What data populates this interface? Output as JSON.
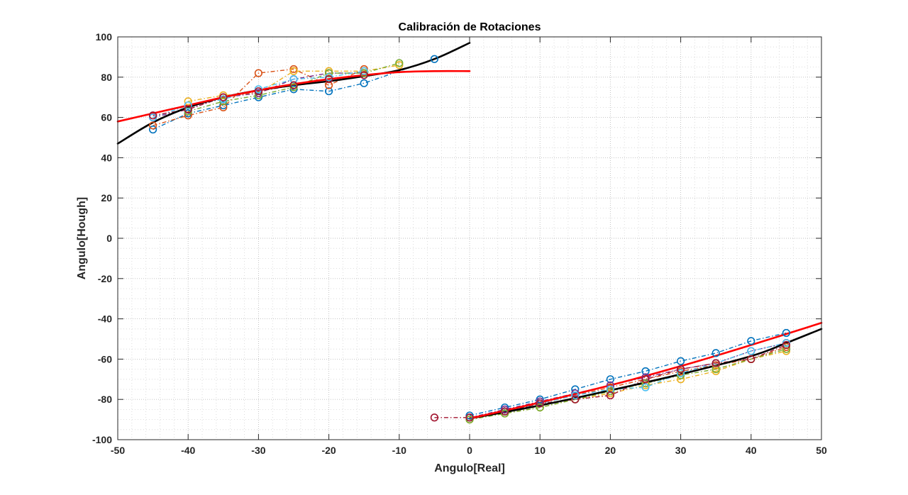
{
  "chart_data": {
    "type": "scatter",
    "title": "Calibración de Rotaciones",
    "xlabel": "Angulo[Real]",
    "ylabel": "Angulo[Hough]",
    "xlim": [
      -50,
      50
    ],
    "ylim": [
      -100,
      100
    ],
    "x_ticks": [
      "-50",
      "-40",
      "-30",
      "-20",
      "-10",
      "0",
      "10",
      "20",
      "30",
      "40",
      "50"
    ],
    "y_ticks": [
      "100",
      "80",
      "60",
      "40",
      "20",
      "0",
      "-20",
      "-40",
      "-60",
      "-80",
      "-100"
    ],
    "grid": "on (major and minor, dotted)",
    "legend": "none",
    "series": [
      {
        "color": "#0072BD",
        "negative": [
          [
            -45,
            54
          ],
          [
            -40,
            62
          ],
          [
            -35,
            66
          ],
          [
            -30,
            70
          ],
          [
            -25,
            74
          ],
          [
            -20,
            73
          ],
          [
            -15,
            77
          ],
          [
            -5,
            89
          ]
        ],
        "positive": [
          [
            0,
            -88
          ],
          [
            5,
            -84
          ],
          [
            10,
            -80
          ],
          [
            15,
            -75
          ],
          [
            20,
            -70
          ],
          [
            25,
            -66
          ],
          [
            30,
            -61
          ],
          [
            35,
            -57
          ],
          [
            40,
            -51
          ],
          [
            45,
            -47
          ]
        ]
      },
      {
        "color": "#D95319",
        "negative": [
          [
            -45,
            56
          ],
          [
            -40,
            61
          ],
          [
            -35,
            65
          ],
          [
            -30,
            82
          ],
          [
            -25,
            84
          ],
          [
            -20,
            76
          ],
          [
            -15,
            84
          ]
        ],
        "positive": [
          [
            0,
            -89
          ],
          [
            5,
            -86
          ],
          [
            10,
            -82
          ],
          [
            15,
            -78
          ],
          [
            20,
            -74
          ],
          [
            25,
            -70
          ],
          [
            30,
            -66
          ],
          [
            35,
            -63
          ],
          [
            40,
            -60
          ],
          [
            45,
            -54
          ]
        ]
      },
      {
        "color": "#EDB120",
        "negative": [
          [
            -40,
            68
          ],
          [
            -35,
            71
          ],
          [
            -30,
            72
          ],
          [
            -25,
            83
          ],
          [
            -20,
            83
          ],
          [
            -15,
            83
          ],
          [
            -10,
            86
          ]
        ],
        "positive": [
          [
            0,
            -90
          ],
          [
            5,
            -87
          ],
          [
            10,
            -84
          ],
          [
            15,
            -80
          ],
          [
            20,
            -77
          ],
          [
            25,
            -73
          ],
          [
            30,
            -70
          ],
          [
            35,
            -66
          ],
          [
            40,
            -60
          ],
          [
            45,
            -56
          ]
        ]
      },
      {
        "color": "#7E2F8E",
        "negative": [
          [
            -45,
            60
          ],
          [
            -40,
            64
          ],
          [
            -35,
            70
          ],
          [
            -30,
            72
          ],
          [
            -25,
            79
          ],
          [
            -20,
            82
          ],
          [
            -15,
            82
          ]
        ],
        "positive": [
          [
            0,
            -89
          ],
          [
            5,
            -85
          ],
          [
            10,
            -81
          ],
          [
            15,
            -77
          ],
          [
            20,
            -73
          ],
          [
            25,
            -69
          ],
          [
            30,
            -65
          ],
          [
            35,
            -62
          ],
          [
            40,
            -56
          ],
          [
            45,
            -52
          ]
        ]
      },
      {
        "color": "#77AC30",
        "negative": [
          [
            -40,
            63
          ],
          [
            -35,
            68
          ],
          [
            -30,
            71
          ],
          [
            -25,
            75
          ],
          [
            -20,
            82
          ],
          [
            -15,
            82
          ],
          [
            -10,
            87
          ]
        ],
        "positive": [
          [
            0,
            -90
          ],
          [
            5,
            -87
          ],
          [
            10,
            -84
          ],
          [
            15,
            -80
          ],
          [
            20,
            -76
          ],
          [
            25,
            -72
          ],
          [
            30,
            -68
          ],
          [
            35,
            -65
          ],
          [
            40,
            -60
          ],
          [
            45,
            -55
          ]
        ]
      },
      {
        "color": "#4DBEEE",
        "negative": [
          [
            -45,
            60
          ],
          [
            -40,
            66
          ],
          [
            -35,
            69
          ],
          [
            -30,
            74
          ],
          [
            -25,
            79
          ],
          [
            -20,
            80
          ],
          [
            -15,
            83
          ]
        ],
        "positive": [
          [
            0,
            -89
          ],
          [
            5,
            -86
          ],
          [
            10,
            -82
          ],
          [
            15,
            -78
          ],
          [
            20,
            -75
          ],
          [
            25,
            -74
          ],
          [
            30,
            -67
          ],
          [
            35,
            -62
          ],
          [
            40,
            -56
          ],
          [
            45,
            -52
          ]
        ]
      },
      {
        "color": "#A2142F",
        "negative": [
          [
            -45,
            61
          ],
          [
            -40,
            64
          ],
          [
            -35,
            70
          ],
          [
            -30,
            73
          ],
          [
            -25,
            76
          ],
          [
            -20,
            79
          ],
          [
            -15,
            81
          ]
        ],
        "positive": [
          [
            -5,
            -89
          ],
          [
            0,
            -89
          ],
          [
            5,
            -86
          ],
          [
            10,
            -82
          ],
          [
            15,
            -80
          ],
          [
            20,
            -78
          ],
          [
            25,
            -70
          ],
          [
            30,
            -65
          ],
          [
            35,
            -62
          ],
          [
            40,
            -60
          ],
          [
            45,
            -53
          ]
        ]
      }
    ],
    "fits": [
      {
        "color": "#000000",
        "segments": [
          {
            "x": [
              -50,
              -45,
              -40,
              -35,
              -30,
              -25,
              -20,
              -15,
              -10,
              -5,
              0
            ],
            "y": [
              47,
              57.5,
              65,
              70,
              73.5,
              76,
              78,
              80.5,
              83.5,
              89,
              97
            ]
          },
          {
            "x": [
              0,
              10,
              20,
              30,
              40,
              45,
              50
            ],
            "y": [
              -89.5,
              -83,
              -75.5,
              -67.5,
              -58.5,
              -52,
              -45
            ]
          }
        ]
      },
      {
        "color": "#FF0000",
        "segments": [
          {
            "x": [
              -50,
              -45,
              -40,
              -35,
              -30,
              -25,
              -20,
              -15,
              -10,
              -5,
              0
            ],
            "y": [
              58,
              62,
              66,
              70,
              73.5,
              76.5,
              79,
              81,
              82.5,
              83,
              83
            ]
          },
          {
            "x": [
              0,
              10,
              20,
              30,
              40,
              50
            ],
            "y": [
              -89.5,
              -81.5,
              -73,
              -63.5,
              -53,
              -42
            ]
          }
        ]
      }
    ]
  }
}
